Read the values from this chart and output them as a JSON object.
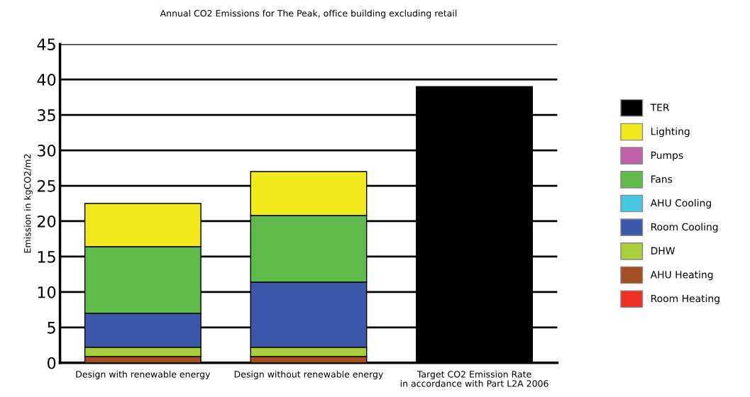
{
  "chart_data": {
    "type": "bar",
    "stacked": true,
    "title": "Annual CO2 Emissions for The Peak, office building excluding retail",
    "ylabel": "Emission in kgCO2/m2",
    "categories": [
      "Design with renewable energy",
      "Design without renewable energy",
      "Target CO2 Emission Rate\nin accordance with Part L2A 2006"
    ],
    "series": [
      {
        "name": "Room Heating",
        "color": "#ee3124",
        "values": [
          0,
          0,
          null
        ]
      },
      {
        "name": "AHU Heating",
        "color": "#a84e26",
        "values": [
          0.9,
          0.9,
          null
        ]
      },
      {
        "name": "DHW",
        "color": "#aacd3a",
        "values": [
          1.3,
          1.3,
          null
        ]
      },
      {
        "name": "Room Cooling",
        "color": "#3c58a8",
        "values": [
          4.8,
          9.2,
          null
        ]
      },
      {
        "name": "AHU Cooling",
        "color": "#48c8e0",
        "values": [
          0,
          0,
          null
        ]
      },
      {
        "name": "Fans",
        "color": "#5fba4a",
        "values": [
          9.4,
          9.4,
          null
        ]
      },
      {
        "name": "Pumps",
        "color": "#c060a8",
        "values": [
          0,
          0,
          null
        ]
      },
      {
        "name": "Lighting",
        "color": "#f2ea1c",
        "values": [
          6.1,
          6.2,
          null
        ]
      },
      {
        "name": "TER",
        "color": "#000000",
        "values": [
          null,
          null,
          39
        ]
      }
    ],
    "ylim": [
      0,
      45
    ],
    "yticks": [
      0,
      5,
      10,
      15,
      20,
      25,
      30,
      35,
      40,
      45
    ],
    "grid": "y",
    "legend": "right"
  }
}
